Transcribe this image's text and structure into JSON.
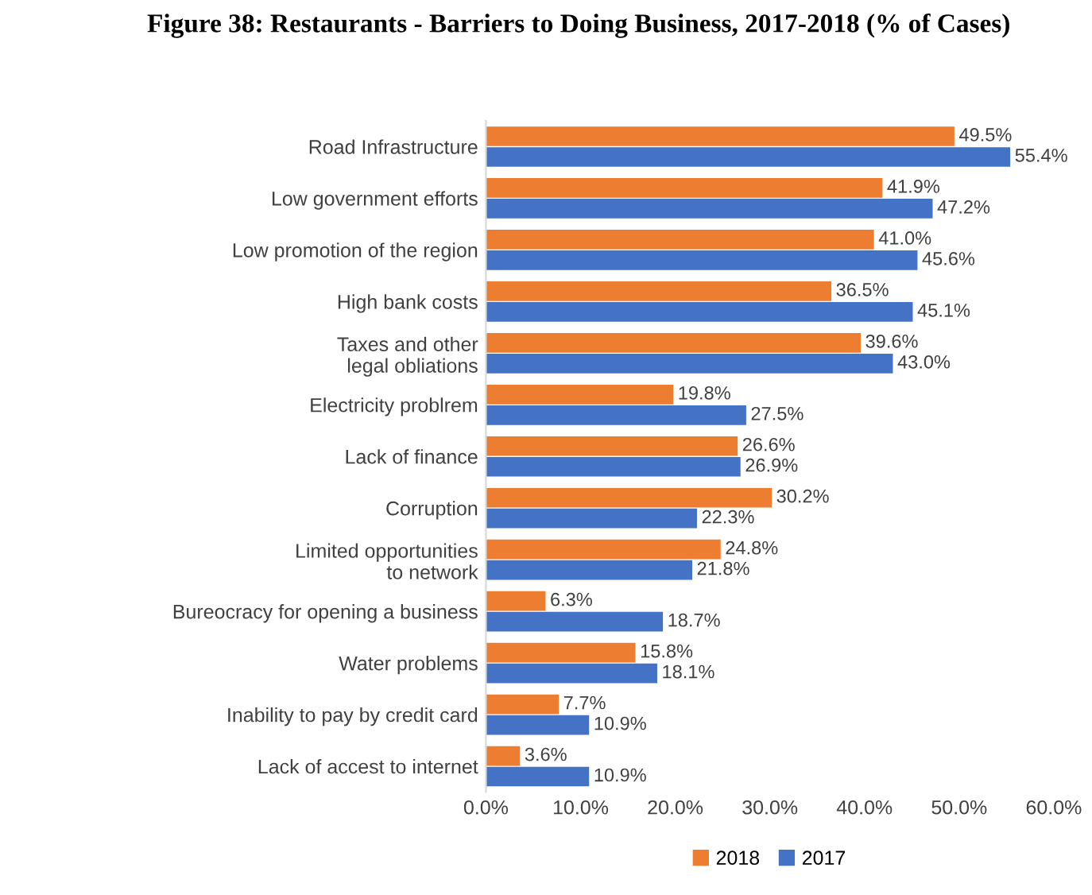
{
  "chart_data": {
    "type": "bar",
    "orientation": "horizontal",
    "title": "Figure 38: Restaurants - Barriers to Doing Business, 2017-2018 (% of Cases)",
    "categories": [
      "Road Infrastructure",
      "Low government efforts",
      "Low promotion of the region",
      "High bank costs",
      "Taxes and other\nlegal obliations",
      "Electricity problrem",
      "Lack of finance",
      "Corruption",
      "Limited opportunities\nto network",
      "Bureocracy for opening a business",
      "Water problems",
      "Inability to pay by credit card",
      "Lack of accest to internet"
    ],
    "series": [
      {
        "name": "2018",
        "color": "#ed7d31",
        "values": [
          49.5,
          41.9,
          41.0,
          36.5,
          39.6,
          19.8,
          26.6,
          30.2,
          24.8,
          6.3,
          15.8,
          7.7,
          3.6
        ],
        "value_labels": [
          "49.5%",
          "41.9%",
          "41.0%",
          "36.5%",
          "39.6%",
          "19.8%",
          "26.6%",
          "30.2%",
          "24.8%",
          "6.3%",
          "15.8%",
          "7.7%",
          "3.6%"
        ]
      },
      {
        "name": "2017",
        "color": "#4472c4",
        "values": [
          55.4,
          47.2,
          45.6,
          45.1,
          43.0,
          27.5,
          26.9,
          22.3,
          21.8,
          18.7,
          18.1,
          10.9,
          10.9
        ],
        "value_labels": [
          "55.4%",
          "47.2%",
          "45.6%",
          "45.1%",
          "43.0%",
          "27.5%",
          "26.9%",
          "22.3%",
          "21.8%",
          "18.7%",
          "18.1%",
          "10.9%",
          "10.9%"
        ]
      }
    ],
    "xlim": [
      0,
      60
    ],
    "xticks": [
      {
        "value": 0,
        "label": "0.0%"
      },
      {
        "value": 10,
        "label": "10.0%"
      },
      {
        "value": 20,
        "label": "20.0%"
      },
      {
        "value": 30,
        "label": "30.0%"
      },
      {
        "value": 40,
        "label": "40.0%"
      },
      {
        "value": 50,
        "label": "50.0%"
      },
      {
        "value": 60,
        "label": "60.0%"
      }
    ],
    "grid": false,
    "legend": "bottom"
  }
}
